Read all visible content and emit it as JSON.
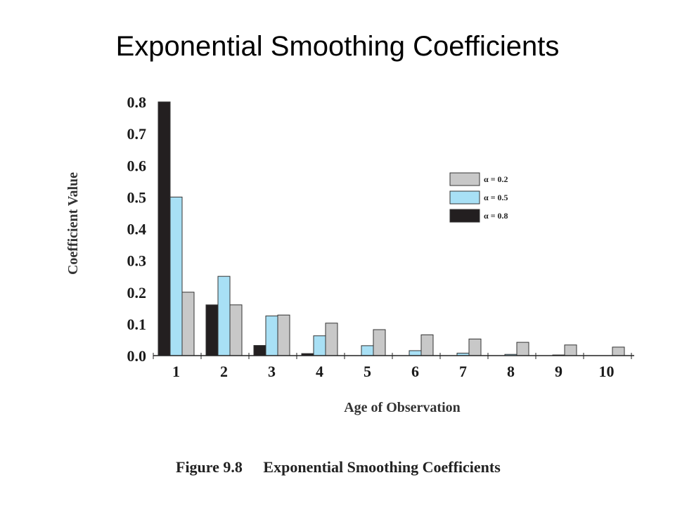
{
  "slide": {
    "title": "Exponential Smoothing Coefficients"
  },
  "caption": {
    "figure_number": "Figure 9.8",
    "figure_title": "Exponential Smoothing Coefficients"
  },
  "colors": {
    "alpha_0_8": "#231f20",
    "alpha_0_5": "#a8e0f5",
    "alpha_0_2": "#c8c8c8",
    "axis": "#222222"
  },
  "chart_data": {
    "type": "bar",
    "xlabel": "Age of Observation",
    "ylabel": "Coefficient Value",
    "ylim": [
      0,
      0.8
    ],
    "y_ticks": [
      "0.0",
      "0.1",
      "0.2",
      "0.3",
      "0.4",
      "0.5",
      "0.6",
      "0.7",
      "0.8"
    ],
    "categories": [
      "1",
      "2",
      "3",
      "4",
      "5",
      "6",
      "7",
      "8",
      "9",
      "10"
    ],
    "legend_position": "top-right",
    "legend_order": [
      "α = 0.2",
      "α = 0.5",
      "α = 0.8"
    ],
    "series": [
      {
        "name": "α = 0.8",
        "color_key": "alpha_0_8",
        "values": [
          0.8,
          0.16,
          0.032,
          0.0064,
          0.0013,
          0.0003,
          0.0001,
          2e-05,
          0.0,
          0.0
        ]
      },
      {
        "name": "α = 0.5",
        "color_key": "alpha_0_5",
        "values": [
          0.5,
          0.25,
          0.125,
          0.0625,
          0.0313,
          0.0156,
          0.0078,
          0.0039,
          0.002,
          0.001
        ]
      },
      {
        "name": "α = 0.2",
        "color_key": "alpha_0_2",
        "values": [
          0.2,
          0.16,
          0.128,
          0.1024,
          0.0819,
          0.0655,
          0.0524,
          0.0419,
          0.0336,
          0.0268
        ]
      }
    ]
  }
}
